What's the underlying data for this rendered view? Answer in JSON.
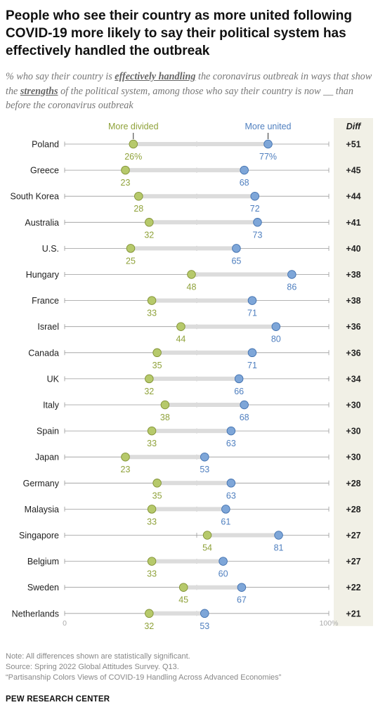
{
  "title": "People who see their country as more united following COVID-19 more likely to say their political system has effectively handled the outbreak",
  "subtitle": {
    "p1": "% who say their country is ",
    "em1": "effectively handling",
    "p2": " the coronavirus outbreak in ways that show the ",
    "em2": "strengths",
    "p3": " of the political system, among those who say their country is now __ than before the coronavirus outbreak"
  },
  "colors": {
    "divided": "#b6c96b",
    "united": "#7ea6d8",
    "divided_text": "#8fa23a",
    "united_text": "#4f7fbf",
    "diff_bg": "#f1f0e6",
    "line": "#dcdcdc"
  },
  "chart_data": {
    "type": "dot",
    "xlim": [
      0,
      100
    ],
    "x_tick_labels": [
      "0",
      "100%"
    ],
    "diff_header": "Diff",
    "series": [
      {
        "name": "More divided",
        "values": [
          26,
          23,
          28,
          32,
          25,
          48,
          33,
          44,
          35,
          32,
          38,
          33,
          23,
          35,
          33,
          54,
          33,
          45,
          32
        ]
      },
      {
        "name": "More united",
        "values": [
          77,
          68,
          72,
          73,
          65,
          86,
          71,
          80,
          71,
          66,
          68,
          63,
          53,
          63,
          61,
          81,
          60,
          67,
          53
        ]
      }
    ],
    "categories": [
      "Poland",
      "Greece",
      "South Korea",
      "Australia",
      "U.S.",
      "Hungary",
      "France",
      "Israel",
      "Canada",
      "UK",
      "Italy",
      "Spain",
      "Japan",
      "Germany",
      "Malaysia",
      "Singapore",
      "Belgium",
      "Sweden",
      "Netherlands"
    ],
    "divided_labels": [
      "26%",
      "23",
      "28",
      "32",
      "25",
      "48",
      "33",
      "44",
      "35",
      "32",
      "38",
      "33",
      "23",
      "35",
      "33",
      "54",
      "33",
      "45",
      "32"
    ],
    "united_labels": [
      "77%",
      "68",
      "72",
      "73",
      "65",
      "86",
      "71",
      "80",
      "71",
      "66",
      "68",
      "63",
      "53",
      "63",
      "61",
      "81",
      "60",
      "67",
      "53"
    ],
    "diff": [
      "+51",
      "+45",
      "+44",
      "+41",
      "+40",
      "+38",
      "+38",
      "+36",
      "+36",
      "+34",
      "+30",
      "+30",
      "+30",
      "+28",
      "+28",
      "+27",
      "+27",
      "+22",
      "+21"
    ]
  },
  "notes": [
    "Note: All differences shown are statistically significant.",
    "Source: Spring 2022 Global Attitudes Survey. Q13.",
    "“Partisanship Colors Views of COVID-19 Handling Across Advanced Economies”"
  ],
  "org": "PEW RESEARCH CENTER"
}
